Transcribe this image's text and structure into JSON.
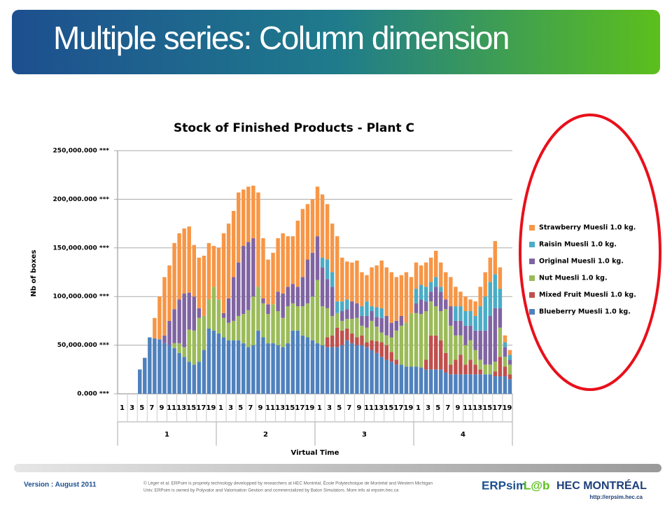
{
  "slide": {
    "title": "Multiple series: Column dimension",
    "version": "Version : August 2011",
    "copyright": [
      "© Léger et al. ERPsim is propriety technology developped by researchers at HEC Montréal, École Polytechnique de Montréal and Western Michigan",
      "Univ. ERPsim is owned by Polyvalor and Valorisation Gestion and commercialized by Baton Simulators. More info at erpsim.hec.ca"
    ],
    "logo_erpsim": "ERPsim",
    "logo_lab": "L@b",
    "logo_hec": "HEC MONTRÉAL",
    "url": "http://erpsim.hec.ca"
  },
  "chart_data": {
    "type": "bar",
    "stacked": true,
    "title": "Stock of Finished Products - Plant C",
    "ylabel": "Nb of boxes",
    "xlabel": "Virtual Time",
    "categories": [
      1,
      null,
      3,
      null,
      5,
      null,
      7,
      null,
      9,
      null,
      11,
      null,
      13,
      null,
      15,
      null,
      17,
      null,
      19,
      null,
      1,
      null,
      3,
      null,
      5,
      null,
      7,
      null,
      9,
      null,
      11,
      null,
      13,
      null,
      15,
      null,
      17,
      null,
      19,
      null,
      1,
      null,
      3,
      null,
      5,
      null,
      7,
      null,
      9,
      null,
      11,
      null,
      13,
      null,
      15,
      null,
      17,
      null,
      19,
      null,
      1,
      null,
      3,
      null,
      5,
      null,
      7,
      null,
      9,
      null,
      11,
      null,
      13,
      null,
      15,
      null,
      17,
      null,
      19,
      null
    ],
    "groups": [
      1,
      2,
      3,
      4
    ],
    "ylim": [
      0,
      250000
    ],
    "yticks": [
      {
        "value": 0,
        "label": "0.000 ***"
      },
      {
        "value": 50000,
        "label": "50,000.000 ***"
      },
      {
        "value": 100000,
        "label": "100,000.000 ***"
      },
      {
        "value": 150000,
        "label": "150,000.000 ***"
      },
      {
        "value": 200000,
        "label": "200,000.000 ***"
      },
      {
        "value": 250000,
        "label": "250,000.000 ***"
      }
    ],
    "grid": true,
    "legend": "right",
    "series": [
      {
        "name": "Blueberry Muesli 1.0 kg.",
        "color": "#4f81bd",
        "values": [
          0,
          0,
          0,
          0,
          25000,
          37000,
          58000,
          57000,
          56000,
          52000,
          50000,
          47000,
          42000,
          38000,
          33000,
          30000,
          33000,
          45000,
          67000,
          65000,
          62000,
          58000,
          55000,
          55000,
          55000,
          52000,
          48000,
          50000,
          65000,
          58000,
          52000,
          52000,
          50000,
          48000,
          52000,
          65000,
          65000,
          60000,
          58000,
          55000,
          52000,
          50000,
          48000,
          48000,
          48000,
          50000,
          55000,
          52000,
          50000,
          50000,
          48000,
          45000,
          42000,
          38000,
          35000,
          33000,
          30000,
          30000,
          28000,
          28000,
          28000,
          27000,
          25000,
          25000,
          25000,
          25000,
          22000,
          20000,
          20000,
          20000,
          20000,
          20000,
          20000,
          20000,
          20000,
          20000,
          18000,
          18000,
          18000,
          15000
        ]
      },
      {
        "name": "Mixed Fruit Muesli 1.0 kg.",
        "color": "#c0504d",
        "values": [
          0,
          0,
          0,
          0,
          0,
          0,
          0,
          0,
          0,
          0,
          0,
          0,
          0,
          0,
          0,
          0,
          0,
          0,
          0,
          0,
          0,
          0,
          0,
          0,
          0,
          0,
          0,
          0,
          0,
          0,
          0,
          0,
          0,
          0,
          0,
          0,
          0,
          0,
          0,
          0,
          0,
          0,
          10000,
          12000,
          20000,
          15000,
          12000,
          10000,
          8000,
          10000,
          5000,
          10000,
          12000,
          15000,
          15000,
          10000,
          5000,
          0,
          0,
          0,
          0,
          0,
          10000,
          35000,
          35000,
          30000,
          20000,
          10000,
          15000,
          20000,
          10000,
          15000,
          10000,
          5000,
          0,
          0,
          5000,
          20000,
          10000,
          5000
        ]
      },
      {
        "name": "Nut Muesli 1.0 kg.",
        "color": "#9bbb59",
        "values": [
          0,
          0,
          0,
          0,
          0,
          0,
          0,
          0,
          0,
          0,
          0,
          5000,
          10000,
          10000,
          33000,
          35000,
          45000,
          35000,
          30000,
          45000,
          35000,
          20000,
          18000,
          20000,
          25000,
          30000,
          38000,
          50000,
          45000,
          35000,
          30000,
          40000,
          35000,
          30000,
          38000,
          28000,
          25000,
          30000,
          35000,
          45000,
          65000,
          40000,
          30000,
          20000,
          15000,
          10000,
          10000,
          15000,
          20000,
          10000,
          15000,
          20000,
          15000,
          10000,
          10000,
          15000,
          30000,
          40000,
          45000,
          55000,
          55000,
          55000,
          50000,
          35000,
          30000,
          30000,
          45000,
          40000,
          25000,
          20000,
          20000,
          20000,
          15000,
          10000,
          10000,
          10000,
          10000,
          30000,
          10000,
          10000
        ]
      },
      {
        "name": "Original Muesli 1.0 kg.",
        "color": "#8064a2",
        "values": [
          0,
          0,
          0,
          0,
          0,
          0,
          0,
          0,
          0,
          8000,
          25000,
          35000,
          45000,
          55000,
          38000,
          35000,
          10000,
          0,
          0,
          0,
          0,
          5000,
          25000,
          45000,
          55000,
          70000,
          70000,
          60000,
          0,
          5000,
          10000,
          0,
          20000,
          25000,
          20000,
          20000,
          20000,
          30000,
          45000,
          45000,
          45000,
          40000,
          30000,
          30000,
          0,
          10000,
          10000,
          18000,
          15000,
          10000,
          12000,
          10000,
          10000,
          15000,
          20000,
          15000,
          10000,
          10000,
          0,
          0,
          10000,
          15000,
          10000,
          10000,
          20000,
          20000,
          10000,
          20000,
          15000,
          15000,
          20000,
          15000,
          20000,
          30000,
          35000,
          50000,
          55000,
          20000,
          10000,
          5000
        ]
      },
      {
        "name": "Raisin Muesli 1.0 kg.",
        "color": "#4bacc6",
        "values": [
          0,
          0,
          0,
          0,
          0,
          0,
          0,
          0,
          0,
          0,
          0,
          0,
          0,
          0,
          0,
          0,
          0,
          0,
          0,
          0,
          0,
          0,
          0,
          0,
          0,
          0,
          0,
          0,
          0,
          0,
          0,
          0,
          0,
          0,
          0,
          0,
          0,
          0,
          0,
          0,
          0,
          10000,
          20000,
          15000,
          12000,
          10000,
          10000,
          0,
          0,
          10000,
          15000,
          5000,
          10000,
          10000,
          0,
          0,
          0,
          0,
          0,
          0,
          15000,
          15000,
          15000,
          10000,
          10000,
          5000,
          0,
          0,
          15000,
          15000,
          15000,
          15000,
          15000,
          25000,
          35000,
          35000,
          35000,
          20000,
          5000,
          5000
        ]
      },
      {
        "name": "Strawberry Muesli 1.0 kg.",
        "color": "#f79646",
        "values": [
          0,
          0,
          0,
          0,
          0,
          0,
          0,
          21000,
          44000,
          60000,
          57000,
          68000,
          68000,
          67000,
          68000,
          53000,
          52000,
          62000,
          58000,
          42000,
          53000,
          82000,
          77000,
          68000,
          72000,
          58000,
          57000,
          54000,
          97000,
          62000,
          46000,
          53000,
          55000,
          62000,
          52000,
          49000,
          68000,
          70000,
          57000,
          55000,
          51000,
          65000,
          57000,
          50000,
          67000,
          45000,
          39000,
          40000,
          44000,
          35000,
          27000,
          40000,
          43000,
          49000,
          50000,
          52000,
          45000,
          42000,
          52000,
          37000,
          27000,
          20000,
          25000,
          25000,
          27000,
          25000,
          28000,
          30000,
          20000,
          15000,
          15000,
          12000,
          15000,
          20000,
          25000,
          25000,
          34000,
          22000,
          7000,
          5000
        ]
      }
    ]
  }
}
